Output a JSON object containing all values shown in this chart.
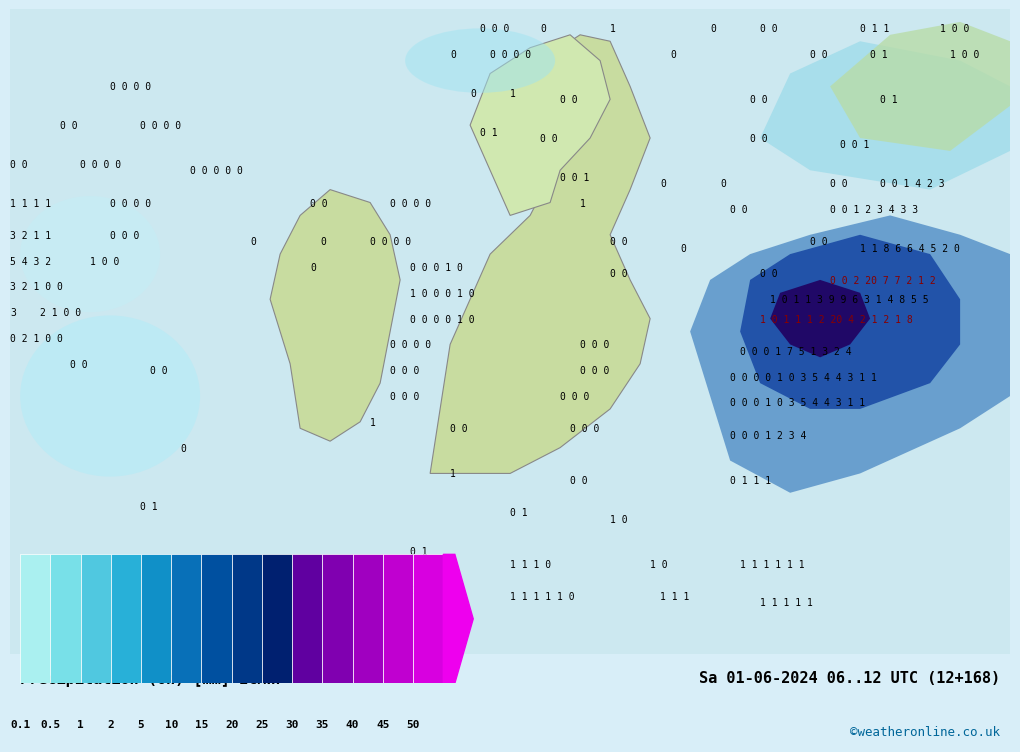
{
  "title_left": "Precipitation (6h) [mm] ECMWF",
  "title_right": "Sa 01-06-2024 06..12 UTC (12+168",
  "watermark": "©weatheronline.co.uk",
  "colorbar_levels": [
    0.1,
    0.5,
    1,
    2,
    5,
    10,
    15,
    20,
    25,
    30,
    35,
    40,
    45,
    50
  ],
  "colorbar_colors": [
    "#aaf0f0",
    "#78e0e8",
    "#50c8e0",
    "#28b0d8",
    "#1090c8",
    "#0870b8",
    "#0050a0",
    "#003888",
    "#002070",
    "#6000a0",
    "#8000b0",
    "#a000c0",
    "#c000d0",
    "#d800e0",
    "#ee00ee"
  ],
  "background_color": "#d8eef8",
  "map_bg": "#d8eef8",
  "bottom_bar_color": "#e8e8e8",
  "text_color": "#000000",
  "arrow_color": "#aa00aa"
}
